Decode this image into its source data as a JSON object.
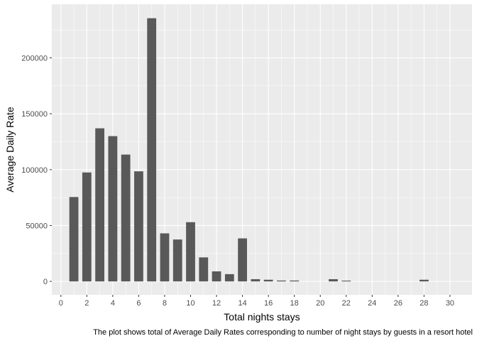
{
  "chart_data": {
    "type": "bar",
    "xlabel": "Total nights stays",
    "ylabel": "Average Daily Rate",
    "caption": "The plot shows total of Average Daily Rates corresponding to number of night stays by guests in a resort hotel",
    "xlim": [
      -0.7,
      31.7
    ],
    "ylim": [
      -12000,
      248000
    ],
    "x_ticks": [
      0,
      2,
      4,
      6,
      8,
      10,
      12,
      14,
      16,
      18,
      20,
      22,
      24,
      26,
      28,
      30
    ],
    "x_tick_labels": [
      "0",
      "2",
      "4",
      "6",
      "8",
      "10",
      "12",
      "14",
      "16",
      "18",
      "20",
      "22",
      "24",
      "26",
      "28",
      "30"
    ],
    "y_ticks": [
      0,
      50000,
      100000,
      150000,
      200000
    ],
    "y_tick_labels": [
      "0",
      "50000",
      "100000",
      "150000",
      "200000"
    ],
    "x": [
      1,
      2,
      3,
      4,
      5,
      6,
      7,
      8,
      9,
      10,
      11,
      12,
      13,
      14,
      15,
      16,
      17,
      18,
      21,
      22,
      28
    ],
    "values": [
      75500,
      97500,
      137000,
      130000,
      113500,
      98500,
      235500,
      43000,
      37500,
      53000,
      21500,
      9000,
      6500,
      38500,
      2000,
      1500,
      800,
      800,
      2000,
      700,
      1500
    ],
    "grid": true,
    "colors": {
      "panel": "#ebebeb",
      "grid": "#ffffff",
      "bar": "#595959",
      "tick": "#333333"
    }
  }
}
